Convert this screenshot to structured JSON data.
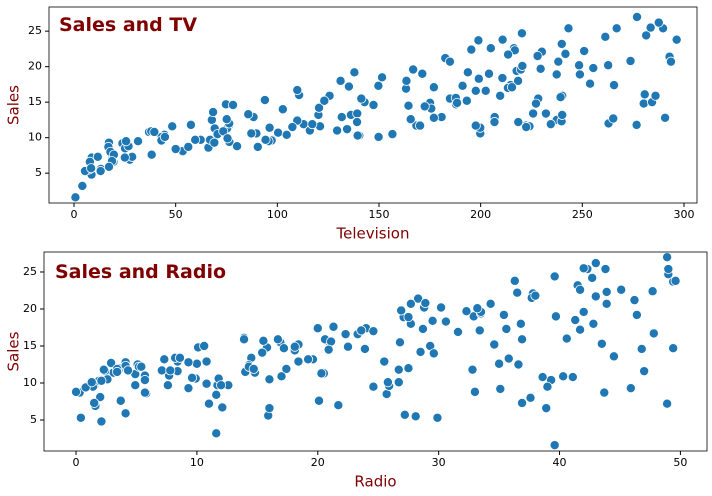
{
  "chart_data": [
    {
      "type": "scatter",
      "title": "Sales and TV",
      "x_label": "Television",
      "y_label": "Sales",
      "color": "#1f77b4",
      "xlim": [
        -12.3,
        306.4
      ],
      "ylim": [
        0.8,
        28.4
      ],
      "xticks": [
        0,
        50,
        100,
        150,
        200,
        250,
        300
      ],
      "yticks": [
        5,
        10,
        15,
        20,
        25
      ],
      "x": [
        230.1,
        44.5,
        17.2,
        151.5,
        180.8,
        8.7,
        57.5,
        120.2,
        8.6,
        199.8,
        66.1,
        214.7,
        23.8,
        97.5,
        204.1,
        195.4,
        67.8,
        281.4,
        69.2,
        147.3,
        218.4,
        237.4,
        13.2,
        228.3,
        62.3,
        262.9,
        142.9,
        240.1,
        248.8,
        70.6,
        292.9,
        112.9,
        97.2,
        265.6,
        95.7,
        290.7,
        266.9,
        74.7,
        43.1,
        228,
        202.5,
        177,
        293.6,
        206.9,
        25.1,
        175.1,
        89.7,
        239.9,
        227.2,
        66.9,
        199.8,
        100.4,
        216.4,
        182.6,
        262.7,
        198.9,
        7.3,
        136.2,
        210.8,
        210.7,
        53.5,
        261.3,
        239.3,
        102.7,
        131.1,
        69,
        31.5,
        139.3,
        237.4,
        216.8,
        199.1,
        109.8,
        26.8,
        129.4,
        213.4,
        16.9,
        27.5,
        120.5,
        5.4,
        116,
        76.4,
        239.8,
        75.3,
        68.4,
        213.5,
        193.2,
        76.3,
        110.7,
        88.3,
        109.8,
        134.3,
        28.6,
        217.7,
        250.9,
        107.4,
        163.3,
        197.6,
        184.9,
        289.7,
        135.2,
        222.4,
        296.4,
        280.2,
        187.9,
        238.2,
        137.9,
        25,
        90.4,
        13.1,
        255.4,
        225.8,
        241.7,
        175.7,
        209.6,
        78.2,
        75.1,
        139.2,
        76.4,
        125.7,
        19.4,
        141.3,
        18.8,
        224,
        123.1,
        229.5,
        87.2,
        7.8,
        80.2,
        220.3,
        59.6,
        0.7,
        265.2,
        8.4,
        219.8,
        36.9,
        48.3,
        25.6,
        273.7,
        43,
        184.9,
        73.4,
        193.7,
        220.5,
        104.6,
        96.2,
        140.3,
        240.1,
        243.2,
        38,
        44.7,
        280.7,
        121,
        197.6,
        171.3,
        187.8,
        4.1,
        93.9,
        149.8,
        11.7,
        131.7,
        172.5,
        85.7,
        188.4,
        163.5,
        117.2,
        234.5,
        17.9,
        206.8,
        215.4,
        284.3,
        50,
        164.5,
        19.6,
        168.4,
        222.4,
        276.9,
        248.4,
        170.2,
        276.7,
        165.6,
        156.6,
        218.5,
        56.2,
        287.6,
        253.8,
        205,
        139.5,
        191.1,
        286,
        18.7,
        39.5,
        75.5,
        17.2,
        166.8,
        149.7,
        38.2,
        94.2,
        177,
        283.6,
        232.1
      ],
      "y": [
        22.1,
        10.4,
        9.3,
        18.5,
        12.9,
        7.2,
        11.8,
        13.2,
        4.8,
        10.6,
        8.6,
        17.4,
        9.2,
        9.7,
        19,
        22.4,
        12.5,
        24.4,
        11.3,
        14.6,
        18,
        12.5,
        5.6,
        15.5,
        9.7,
        12,
        15,
        15.9,
        18.9,
        10.5,
        21.4,
        11.9,
        9.6,
        17.4,
        9.5,
        12.8,
        25.4,
        14.7,
        10.1,
        21.5,
        16.6,
        17.1,
        20.7,
        12.9,
        8.5,
        14.9,
        10.6,
        23.2,
        14.8,
        9.7,
        11.4,
        10.7,
        22.6,
        21.2,
        20.2,
        23.7,
        5.5,
        13.2,
        23.8,
        18.4,
        8.1,
        24.2,
        15.7,
        14,
        18,
        9.3,
        9.5,
        13.4,
        18.9,
        22.3,
        18.3,
        12.4,
        8.8,
        11,
        17,
        8.7,
        6.9,
        14.2,
        5.3,
        11,
        11.8,
        12.3,
        11.3,
        13.6,
        21.7,
        15.2,
        12,
        16,
        12.9,
        16.7,
        11.2,
        7.3,
        19.4,
        22.2,
        11.5,
        16.9,
        11.7,
        15.5,
        25.4,
        17.2,
        11.7,
        23.8,
        14.8,
        14.7,
        20.7,
        19.2,
        7.2,
        8.7,
        5.3,
        19.8,
        13.4,
        21.8,
        14.1,
        15.9,
        14.6,
        12.6,
        12.2,
        9.4,
        15.9,
        6.6,
        15.5,
        7,
        11.6,
        15.2,
        19.7,
        10.6,
        6.6,
        8.8,
        24.7,
        9.7,
        1.6,
        12.7,
        5.7,
        19.6,
        10.8,
        11.6,
        9.5,
        20.8,
        9.6,
        20.7,
        10.9,
        19.2,
        20.1,
        10.4,
        11.4,
        10.3,
        13.2,
        25.4,
        10.9,
        10.1,
        16.1,
        11.6,
        16.6,
        19,
        15.6,
        3.2,
        15.3,
        10.1,
        7.3,
        12.9,
        14.4,
        13.3,
        14.9,
        18,
        11.9,
        11.9,
        8,
        12.2,
        17.1,
        15,
        8.4,
        14.5,
        7.6,
        11.7,
        11.5,
        27,
        20.2,
        11.7,
        11.8,
        12.6,
        10.5,
        12.2,
        8.7,
        26.2,
        17.6,
        22.6,
        10.3,
        17.3,
        15.9,
        6.7,
        10.8,
        9.9,
        5.9,
        19.6,
        17.3,
        7.6,
        9.7,
        12.8,
        25.5,
        13.4
      ]
    },
    {
      "type": "scatter",
      "title": "Sales and Radio",
      "x_label": "Radio",
      "y_label": "Sales",
      "color": "#1f77b4",
      "xlim": [
        -2.65,
        52.2
      ],
      "ylim": [
        0.81,
        27.7
      ],
      "xticks": [
        0,
        10,
        20,
        30,
        40,
        50
      ],
      "yticks": [
        5,
        10,
        15,
        20,
        25
      ],
      "x": [
        37.8,
        39.3,
        45.9,
        41.3,
        10.8,
        48.9,
        32.8,
        19.6,
        2.1,
        2.6,
        5.8,
        24,
        35.1,
        7.6,
        32.9,
        47.7,
        36.6,
        39.6,
        20.5,
        23.9,
        27.7,
        5.1,
        15.9,
        16.9,
        12.6,
        3.5,
        29.3,
        16.7,
        27.1,
        16,
        28.3,
        17.4,
        1.5,
        20,
        1.4,
        4.1,
        43.8,
        49.4,
        26.7,
        37.7,
        22.3,
        33.4,
        27.7,
        8.4,
        25.7,
        22.5,
        9.9,
        41.5,
        15.8,
        11.7,
        3.1,
        9.6,
        41.7,
        46.2,
        28.8,
        49.4,
        28.1,
        19.2,
        49.6,
        29.5,
        2,
        42.7,
        15.5,
        29.6,
        42.8,
        9.3,
        24.6,
        14.5,
        27.5,
        43.9,
        30.6,
        14.3,
        33,
        5.7,
        24.6,
        43.7,
        1.6,
        28.5,
        29.9,
        7.7,
        26.7,
        4.1,
        20.3,
        44.5,
        43,
        18.4,
        27.5,
        40.6,
        25.5,
        47.8,
        4.9,
        1.5,
        33.5,
        36.5,
        14,
        31.6,
        3.5,
        21,
        42.3,
        41.7,
        4.3,
        36.3,
        10.1,
        17.2,
        34.3,
        46.4,
        11,
        0.3,
        0.4,
        26.9,
        8.2,
        38,
        15.4,
        20.6,
        46.8,
        35,
        14.3,
        0.8,
        36.9,
        16,
        26.8,
        21.7,
        2.4,
        34.6,
        32.3,
        11.8,
        38.9,
        0,
        49,
        12,
        39.6,
        2.9,
        27.2,
        33.5,
        38.6,
        47,
        39,
        28.9,
        25.9,
        43.9,
        17,
        35.4,
        33.2,
        5.7,
        14.8,
        1.9,
        7.3,
        49,
        40.3,
        25.8,
        13.9,
        8.4,
        23.3,
        39.7,
        21.1,
        11.6,
        43.5,
        1.3,
        36.9,
        18.4,
        18.1,
        35.8,
        18.1,
        36.8,
        14.7,
        3.4,
        37.6,
        5.2,
        23.6,
        10.6,
        11.6,
        20.9,
        20.1,
        7.1,
        3.4,
        48.9,
        30.2,
        7.8,
        2.3,
        10,
        2.6,
        5.4,
        5.7,
        43,
        21.3,
        45.1,
        2.1,
        28.7,
        13.9,
        12.1,
        41.1,
        10.8,
        4.1,
        42,
        35.6,
        3.7,
        4.9,
        9.3,
        42,
        8.6
      ],
      "y": [
        22.1,
        10.4,
        9.3,
        18.5,
        12.9,
        7.2,
        11.8,
        13.2,
        4.8,
        10.6,
        8.6,
        17.4,
        9.2,
        9.7,
        19,
        22.4,
        12.5,
        24.4,
        11.3,
        14.6,
        18,
        12.5,
        5.6,
        15.5,
        9.7,
        12,
        15,
        15.9,
        18.9,
        10.5,
        21.4,
        11.9,
        9.6,
        17.4,
        9.5,
        12.8,
        25.4,
        14.7,
        10.1,
        21.5,
        16.6,
        17.1,
        20.7,
        12.9,
        8.5,
        14.9,
        10.6,
        23.2,
        14.8,
        9.7,
        11.4,
        10.7,
        22.6,
        21.2,
        20.2,
        23.7,
        5.5,
        13.2,
        23.8,
        18.4,
        8.1,
        24.2,
        15.7,
        14,
        18,
        9.3,
        9.5,
        13.4,
        18.9,
        22.3,
        18.3,
        12.4,
        8.8,
        11,
        17,
        8.7,
        6.9,
        14.2,
        5.3,
        11,
        11.8,
        12.3,
        11.3,
        13.6,
        21.7,
        15.2,
        12,
        16,
        12.9,
        16.7,
        11.2,
        7.3,
        19.4,
        22.2,
        11.5,
        16.9,
        11.7,
        15.5,
        25.4,
        17.2,
        11.7,
        23.8,
        14.8,
        14.7,
        20.7,
        19.2,
        7.2,
        8.7,
        5.3,
        19.8,
        13.4,
        21.8,
        14.1,
        15.9,
        14.6,
        12.6,
        12.2,
        9.4,
        15.9,
        6.6,
        15.5,
        7,
        11.6,
        15.2,
        19.7,
        10.6,
        6.6,
        8.8,
        24.7,
        9.7,
        1.6,
        12.7,
        5.7,
        19.6,
        10.8,
        11.6,
        9.5,
        20.8,
        9.6,
        20.7,
        10.9,
        19.2,
        20.1,
        10.4,
        11.4,
        10.3,
        13.2,
        25.4,
        10.9,
        10.1,
        16.1,
        11.6,
        16.6,
        19,
        15.6,
        3.2,
        15.3,
        10.1,
        7.3,
        12.9,
        14.4,
        13.3,
        14.9,
        18,
        11.9,
        11.9,
        8,
        12.2,
        17.1,
        15,
        8.4,
        14.5,
        7.6,
        11.7,
        11.5,
        27,
        20.2,
        11.7,
        11.8,
        12.6,
        10.5,
        12.2,
        8.7,
        26.2,
        17.6,
        22.6,
        10.3,
        17.3,
        15.9,
        6.7,
        10.8,
        9.9,
        5.9,
        19.6,
        17.3,
        7.6,
        9.7,
        12.8,
        25.5,
        13.4
      ]
    }
  ]
}
